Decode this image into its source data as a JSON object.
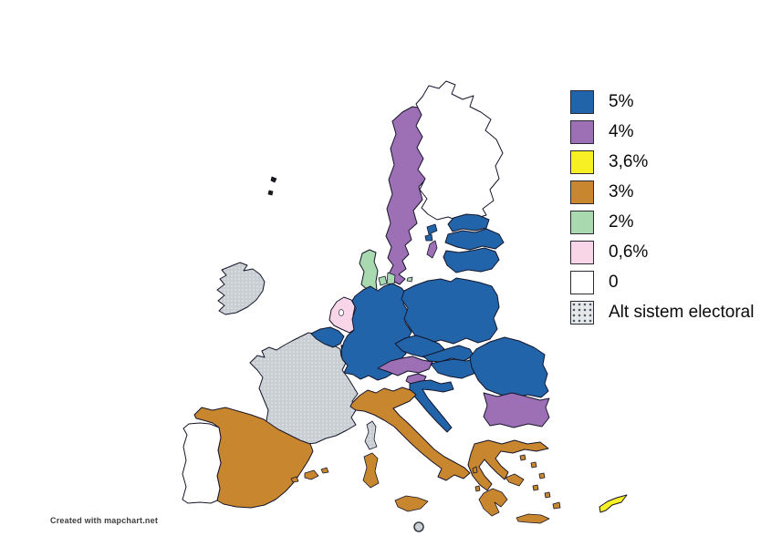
{
  "legend": {
    "items": [
      {
        "id": "t5",
        "label": "5%",
        "color": "#2264a9",
        "pattern": "solid"
      },
      {
        "id": "t4",
        "label": "4%",
        "color": "#9d6fb5",
        "pattern": "solid"
      },
      {
        "id": "t36",
        "label": "3,6%",
        "color": "#f6f025",
        "pattern": "solid"
      },
      {
        "id": "t3",
        "label": "3%",
        "color": "#c8862f",
        "pattern": "solid"
      },
      {
        "id": "t2",
        "label": "2%",
        "color": "#a9d9ae",
        "pattern": "solid"
      },
      {
        "id": "t06",
        "label": "0,6%",
        "color": "#f9d5e8",
        "pattern": "solid"
      },
      {
        "id": "t0",
        "label": "0",
        "color": "#ffffff",
        "pattern": "solid"
      },
      {
        "id": "alt",
        "label": "Alt sistem electoral",
        "color": "#c9ced3",
        "pattern": "dots"
      }
    ]
  },
  "map": {
    "countries": [
      {
        "id": "sweden",
        "name": "Sweden",
        "value": "4%"
      },
      {
        "id": "finland",
        "name": "Finland",
        "value": "0"
      },
      {
        "id": "estonia",
        "name": "Estonia",
        "value": "5%"
      },
      {
        "id": "latvia",
        "name": "Latvia",
        "value": "5%"
      },
      {
        "id": "lithuania",
        "name": "Lithuania",
        "value": "5%"
      },
      {
        "id": "denmark",
        "name": "Denmark",
        "value": "2%"
      },
      {
        "id": "poland",
        "name": "Poland",
        "value": "5%"
      },
      {
        "id": "germany",
        "name": "Germany",
        "value": "5%"
      },
      {
        "id": "netherlands",
        "name": "Netherlands",
        "value": "0,6%"
      },
      {
        "id": "belgium",
        "name": "Belgium",
        "value": "5%"
      },
      {
        "id": "luxembourg",
        "name": "Luxembourg",
        "value": "5%"
      },
      {
        "id": "france",
        "name": "France",
        "value": "Alt sistem electoral"
      },
      {
        "id": "ireland",
        "name": "Ireland",
        "value": "Alt sistem electoral"
      },
      {
        "id": "czechia",
        "name": "Czechia",
        "value": "5%"
      },
      {
        "id": "slovakia",
        "name": "Slovakia",
        "value": "5%"
      },
      {
        "id": "austria",
        "name": "Austria",
        "value": "4%"
      },
      {
        "id": "hungary",
        "name": "Hungary",
        "value": "5%"
      },
      {
        "id": "slovenia",
        "name": "Slovenia",
        "value": "4%"
      },
      {
        "id": "croatia",
        "name": "Croatia",
        "value": "5%"
      },
      {
        "id": "romania",
        "name": "Romania",
        "value": "5%"
      },
      {
        "id": "bulgaria",
        "name": "Bulgaria",
        "value": "4%"
      },
      {
        "id": "greece",
        "name": "Greece",
        "value": "3%"
      },
      {
        "id": "italy",
        "name": "Italy",
        "value": "3%"
      },
      {
        "id": "spain",
        "name": "Spain",
        "value": "3%"
      },
      {
        "id": "portugal",
        "name": "Portugal",
        "value": "0"
      },
      {
        "id": "cyprus",
        "name": "Cyprus",
        "value": "3,6%"
      },
      {
        "id": "malta",
        "name": "Malta",
        "value": "Alt sistem electoral"
      }
    ]
  },
  "credit": "Created with mapchart.net"
}
